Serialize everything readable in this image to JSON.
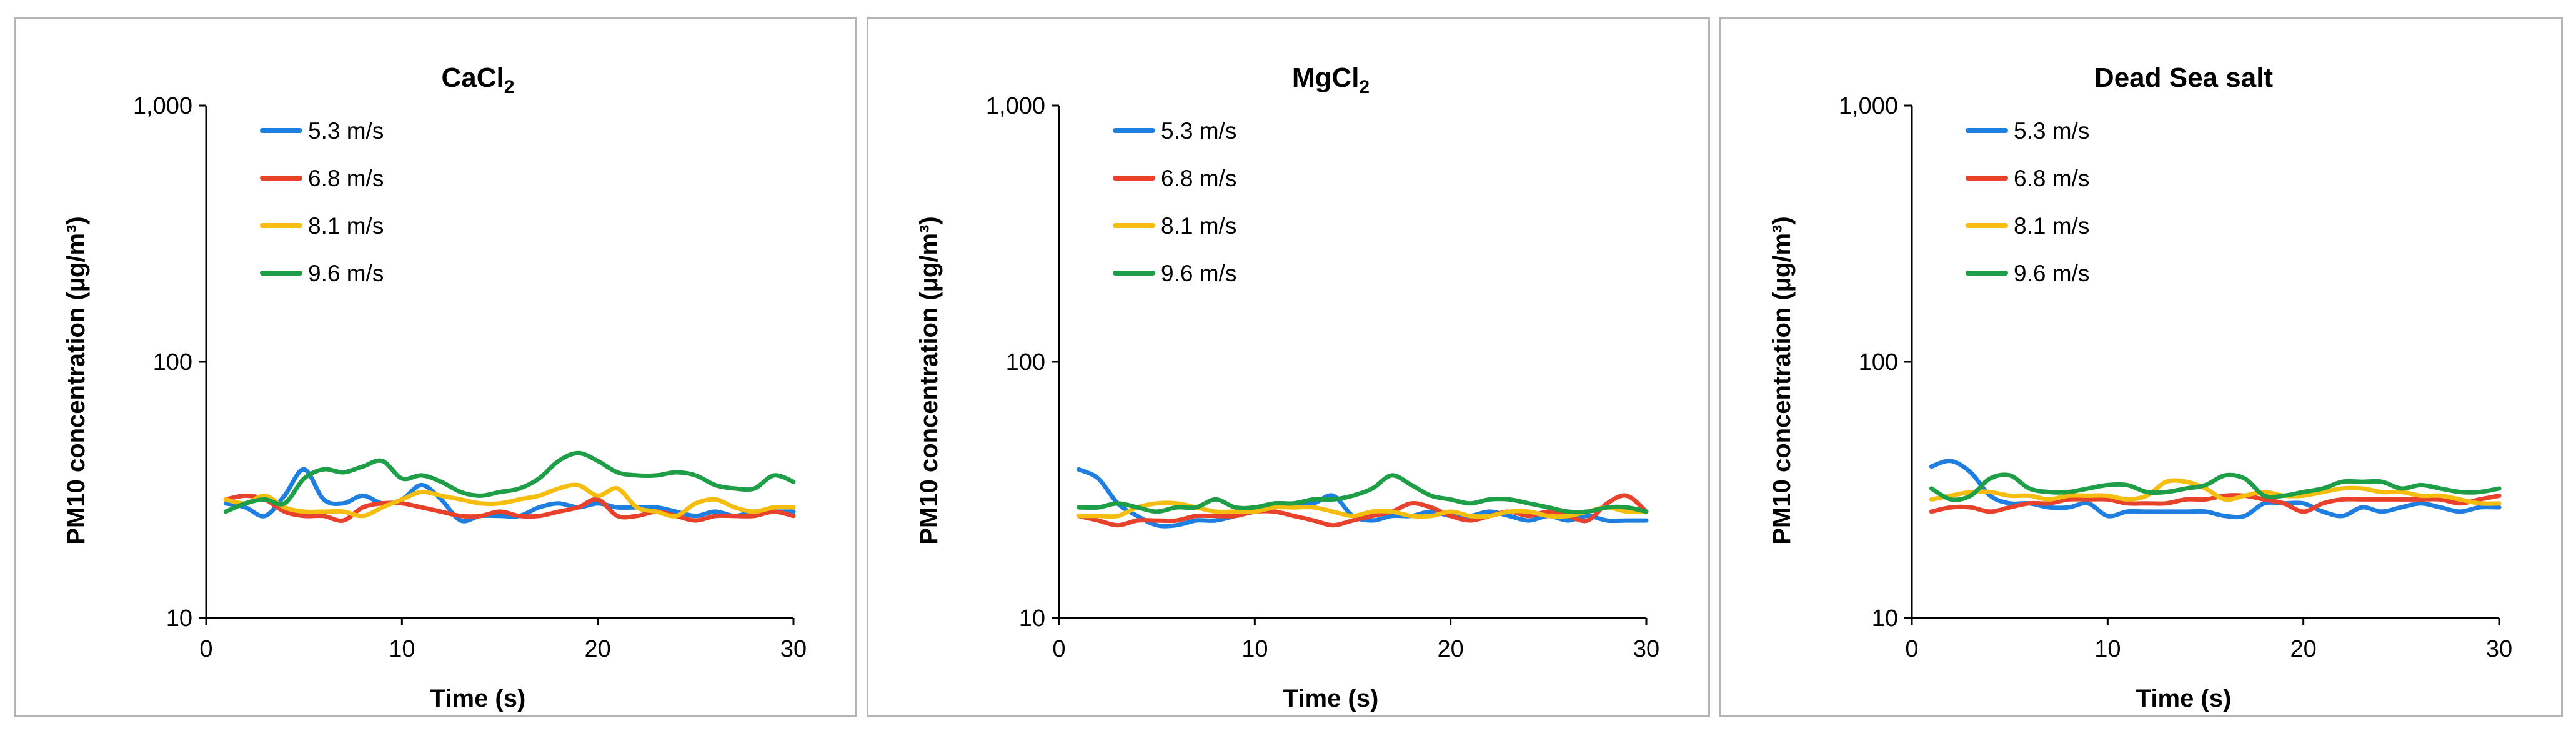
{
  "colors": {
    "s53": "#1f7fe0",
    "s68": "#e8412c",
    "s81": "#f5be0e",
    "s96": "#1f9e48"
  },
  "chart_data": [
    {
      "type": "line",
      "title_main": "CaCl",
      "title_sub": "2",
      "xlabel": "Time (s)",
      "ylabel": "PM10 concentration (µg/m³)",
      "yscale": "log",
      "xlim": [
        0,
        30
      ],
      "ylim": [
        10,
        1000
      ],
      "xticks": [
        "0",
        "10",
        "20",
        "30"
      ],
      "yticks": [
        "10",
        "100",
        "1,000"
      ],
      "x": [
        1,
        2,
        3,
        4,
        5,
        6,
        7,
        8,
        9,
        10,
        11,
        12,
        13,
        14,
        15,
        16,
        17,
        18,
        19,
        20,
        21,
        22,
        23,
        24,
        25,
        26,
        27,
        28,
        29,
        30
      ],
      "series": [
        {
          "name": "5.3 m/s",
          "color": "#1f7fe0",
          "values": [
            28,
            27,
            25,
            30,
            38,
            29,
            28,
            30,
            28,
            29,
            33,
            29,
            24,
            25,
            25,
            25,
            27,
            28,
            27,
            28,
            27,
            27,
            27,
            26,
            25,
            26,
            25,
            26,
            26,
            26
          ]
        },
        {
          "name": "6.8 m/s",
          "color": "#e8412c",
          "values": [
            29,
            30,
            29,
            26,
            25,
            25,
            24,
            27,
            28,
            28,
            27,
            26,
            25,
            25,
            26,
            25,
            25,
            26,
            27,
            29,
            25,
            25,
            26,
            25,
            24,
            25,
            25,
            25,
            26,
            25
          ]
        },
        {
          "name": "8.1 m/s",
          "color": "#f5be0e",
          "values": [
            29,
            28,
            30,
            27,
            26,
            26,
            26,
            25,
            27,
            29,
            31,
            30,
            29,
            28,
            28,
            29,
            30,
            32,
            33,
            30,
            32,
            27,
            26,
            25,
            28,
            29,
            27,
            26,
            27,
            27
          ]
        },
        {
          "name": "9.6 m/s",
          "color": "#1f9e48",
          "values": [
            26,
            28,
            29,
            28,
            35,
            38,
            37,
            39,
            41,
            35,
            36,
            34,
            31,
            30,
            31,
            32,
            35,
            41,
            44,
            41,
            37,
            36,
            36,
            37,
            36,
            33,
            32,
            32,
            36,
            34
          ]
        }
      ]
    },
    {
      "type": "line",
      "title_main": "MgCl",
      "title_sub": "2",
      "xlabel": "Time (s)",
      "ylabel": "PM10 concentration (µg/m³)",
      "yscale": "log",
      "xlim": [
        0,
        30
      ],
      "ylim": [
        10,
        1000
      ],
      "xticks": [
        "0",
        "10",
        "20",
        "30"
      ],
      "yticks": [
        "10",
        "100",
        "1,000"
      ],
      "x": [
        1,
        2,
        3,
        4,
        5,
        6,
        7,
        8,
        9,
        10,
        11,
        12,
        13,
        14,
        15,
        16,
        17,
        18,
        19,
        20,
        21,
        22,
        23,
        24,
        25,
        26,
        27,
        28,
        29,
        30
      ],
      "series": [
        {
          "name": "5.3 m/s",
          "color": "#1f7fe0",
          "values": [
            38,
            35,
            28,
            25,
            23,
            23,
            24,
            24,
            25,
            26,
            27,
            28,
            28,
            30,
            25,
            24,
            25,
            25,
            26,
            25,
            25,
            26,
            25,
            24,
            25,
            24,
            25,
            24,
            24,
            24
          ]
        },
        {
          "name": "6.8 m/s",
          "color": "#e8412c",
          "values": [
            25,
            24,
            23,
            24,
            24,
            24,
            25,
            25,
            25,
            26,
            26,
            25,
            24,
            23,
            24,
            25,
            26,
            28,
            27,
            25,
            24,
            25,
            26,
            25,
            26,
            25,
            24,
            28,
            30,
            26
          ]
        },
        {
          "name": "8.1 m/s",
          "color": "#f5be0e",
          "values": [
            25,
            25,
            25,
            27,
            28,
            28,
            27,
            26,
            26,
            26,
            27,
            27,
            27,
            26,
            25,
            26,
            26,
            25,
            25,
            26,
            25,
            25,
            26,
            26,
            25,
            25,
            26,
            27,
            26,
            26
          ]
        },
        {
          "name": "9.6 m/s",
          "color": "#1f9e48",
          "values": [
            27,
            27,
            28,
            27,
            26,
            27,
            27,
            29,
            27,
            27,
            28,
            28,
            29,
            29,
            30,
            32,
            36,
            33,
            30,
            29,
            28,
            29,
            29,
            28,
            27,
            26,
            26,
            27,
            27,
            26
          ]
        }
      ]
    },
    {
      "type": "line",
      "title_main": "Dead Sea salt",
      "title_sub": "",
      "xlabel": "Time (s)",
      "ylabel": "PM10 concentration (µg/m³)",
      "yscale": "log",
      "xlim": [
        0,
        30
      ],
      "ylim": [
        10,
        1000
      ],
      "xticks": [
        "0",
        "10",
        "20",
        "30"
      ],
      "yticks": [
        "10",
        "100",
        "1,000"
      ],
      "x": [
        1,
        2,
        3,
        4,
        5,
        6,
        7,
        8,
        9,
        10,
        11,
        12,
        13,
        14,
        15,
        16,
        17,
        18,
        19,
        20,
        21,
        22,
        23,
        24,
        25,
        26,
        27,
        28,
        29,
        30
      ],
      "series": [
        {
          "name": "5.3 m/s",
          "color": "#1f7fe0",
          "values": [
            39,
            41,
            37,
            30,
            28,
            28,
            27,
            27,
            28,
            25,
            26,
            26,
            26,
            26,
            26,
            25,
            25,
            28,
            28,
            28,
            26,
            25,
            27,
            26,
            27,
            28,
            27,
            26,
            27,
            27
          ]
        },
        {
          "name": "6.8 m/s",
          "color": "#e8412c",
          "values": [
            26,
            27,
            27,
            26,
            27,
            28,
            28,
            29,
            29,
            29,
            28,
            28,
            28,
            29,
            29,
            30,
            30,
            29,
            28,
            26,
            28,
            29,
            29,
            29,
            29,
            29,
            29,
            28,
            29,
            30
          ]
        },
        {
          "name": "8.1 m/s",
          "color": "#f5be0e",
          "values": [
            29,
            30,
            31,
            31,
            30,
            30,
            29,
            30,
            30,
            30,
            29,
            30,
            34,
            34,
            32,
            29,
            30,
            31,
            30,
            30,
            31,
            32,
            32,
            31,
            31,
            30,
            30,
            29,
            28,
            28
          ]
        },
        {
          "name": "9.6 m/s",
          "color": "#1f9e48",
          "values": [
            32,
            29,
            30,
            35,
            36,
            32,
            31,
            31,
            32,
            33,
            33,
            31,
            31,
            32,
            33,
            36,
            35,
            30,
            30,
            31,
            32,
            34,
            34,
            34,
            32,
            33,
            32,
            31,
            31,
            32
          ]
        }
      ]
    }
  ]
}
